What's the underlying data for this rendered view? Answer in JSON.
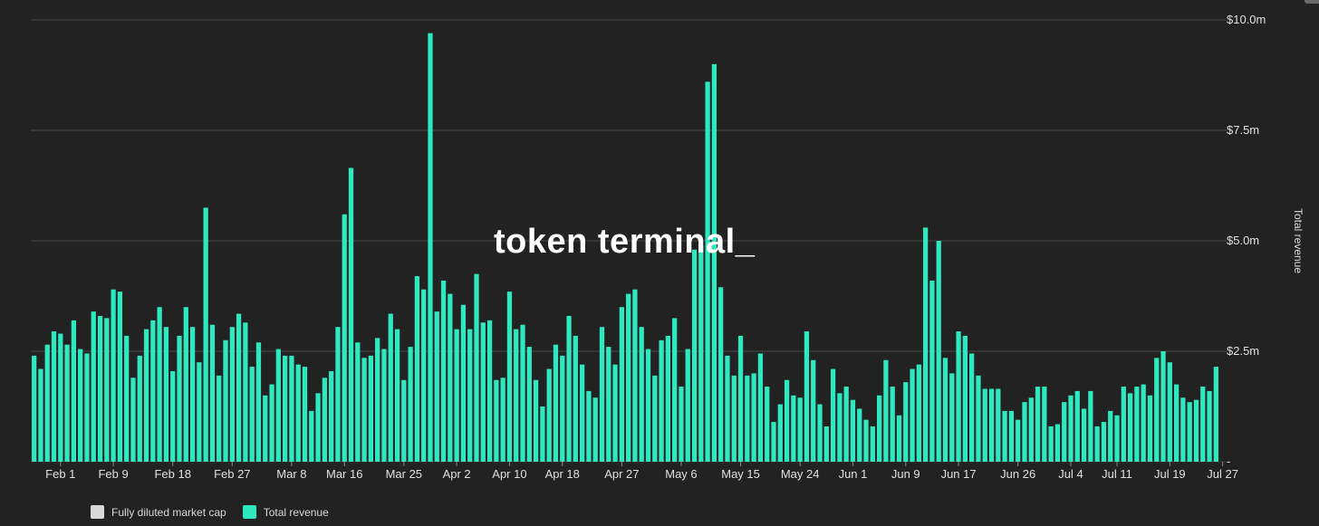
{
  "watermark": "token terminal_",
  "legend": [
    {
      "label": "Fully diluted market cap",
      "color": "#d9d9d9"
    },
    {
      "label": "Total revenue",
      "color": "#2ee8bf"
    }
  ],
  "colors": {
    "background": "#222222",
    "bar": "#2ee8bf",
    "grid": "#4a4a4a",
    "text": "#e6e6e6"
  },
  "chart_data": {
    "type": "bar",
    "ylabel": "Total revenue",
    "ylim": [
      0,
      10000000
    ],
    "y_ticks": [
      {
        "value": 0,
        "label": "-"
      },
      {
        "value": 2500000,
        "label": "$2.5m"
      },
      {
        "value": 5000000,
        "label": "$5.0m"
      },
      {
        "value": 7500000,
        "label": "$7.5m"
      },
      {
        "value": 10000000,
        "label": "$10.0m"
      }
    ],
    "x_ticks": [
      {
        "index": 4,
        "label": "Feb 1"
      },
      {
        "index": 12,
        "label": "Feb 9"
      },
      {
        "index": 21,
        "label": "Feb 18"
      },
      {
        "index": 30,
        "label": "Feb 27"
      },
      {
        "index": 39,
        "label": "Mar 8"
      },
      {
        "index": 47,
        "label": "Mar 16"
      },
      {
        "index": 56,
        "label": "Mar 25"
      },
      {
        "index": 64,
        "label": "Apr 2"
      },
      {
        "index": 72,
        "label": "Apr 10"
      },
      {
        "index": 80,
        "label": "Apr 18"
      },
      {
        "index": 89,
        "label": "Apr 27"
      },
      {
        "index": 98,
        "label": "May 6"
      },
      {
        "index": 107,
        "label": "May 15"
      },
      {
        "index": 116,
        "label": "May 24"
      },
      {
        "index": 124,
        "label": "Jun 1"
      },
      {
        "index": 132,
        "label": "Jun 9"
      },
      {
        "index": 140,
        "label": "Jun 17"
      },
      {
        "index": 149,
        "label": "Jun 26"
      },
      {
        "index": 157,
        "label": "Jul 4"
      },
      {
        "index": 164,
        "label": "Jul 11"
      },
      {
        "index": 172,
        "label": "Jul 19"
      },
      {
        "index": 180,
        "label": "Jul 27"
      }
    ],
    "values": [
      2.4,
      2.1,
      2.65,
      2.95,
      2.9,
      2.65,
      3.2,
      2.55,
      2.45,
      3.4,
      3.3,
      3.25,
      3.9,
      3.85,
      2.85,
      1.9,
      2.4,
      3.0,
      3.2,
      3.5,
      3.05,
      2.05,
      2.85,
      3.5,
      3.05,
      2.25,
      5.75,
      3.1,
      1.95,
      2.75,
      3.05,
      3.35,
      3.15,
      2.15,
      2.7,
      1.5,
      1.75,
      2.55,
      2.4,
      2.4,
      2.2,
      2.15,
      1.15,
      1.55,
      1.9,
      2.05,
      3.05,
      5.6,
      6.65,
      2.7,
      2.35,
      2.4,
      2.8,
      2.55,
      3.35,
      3.0,
      1.85,
      2.6,
      4.2,
      3.9,
      9.7,
      3.4,
      4.1,
      3.8,
      3.0,
      3.55,
      3.0,
      4.25,
      3.15,
      3.2,
      1.85,
      1.9,
      3.85,
      3.0,
      3.1,
      2.6,
      1.85,
      1.25,
      2.1,
      2.65,
      2.4,
      3.3,
      2.85,
      2.2,
      1.6,
      1.45,
      3.05,
      2.6,
      2.2,
      3.5,
      3.8,
      3.9,
      3.05,
      2.55,
      1.95,
      2.75,
      2.85,
      3.25,
      1.7,
      2.55,
      4.8,
      4.9,
      8.6,
      9.0,
      3.95,
      2.4,
      1.95,
      2.85,
      1.95,
      2.0,
      2.45,
      1.7,
      0.9,
      1.3,
      1.85,
      1.5,
      1.45,
      2.95,
      2.3,
      1.3,
      0.8,
      2.1,
      1.55,
      1.7,
      1.4,
      1.2,
      0.95,
      0.8,
      1.5,
      2.3,
      1.7,
      1.05,
      1.8,
      2.1,
      2.2,
      5.3,
      4.1,
      5.0,
      2.35,
      2.0,
      2.95,
      2.85,
      2.45,
      1.95,
      1.65,
      1.65,
      1.65,
      1.15,
      1.15,
      0.95,
      1.35,
      1.45,
      1.7,
      1.7,
      0.8,
      0.85,
      1.35,
      1.5,
      1.6,
      1.2,
      1.6,
      0.8,
      0.9,
      1.15,
      1.05,
      1.7,
      1.55,
      1.7,
      1.75,
      1.5,
      2.35,
      2.5,
      2.25,
      1.75,
      1.45,
      1.35,
      1.4,
      1.7,
      1.6,
      2.15
    ],
    "value_unit": "million USD"
  }
}
